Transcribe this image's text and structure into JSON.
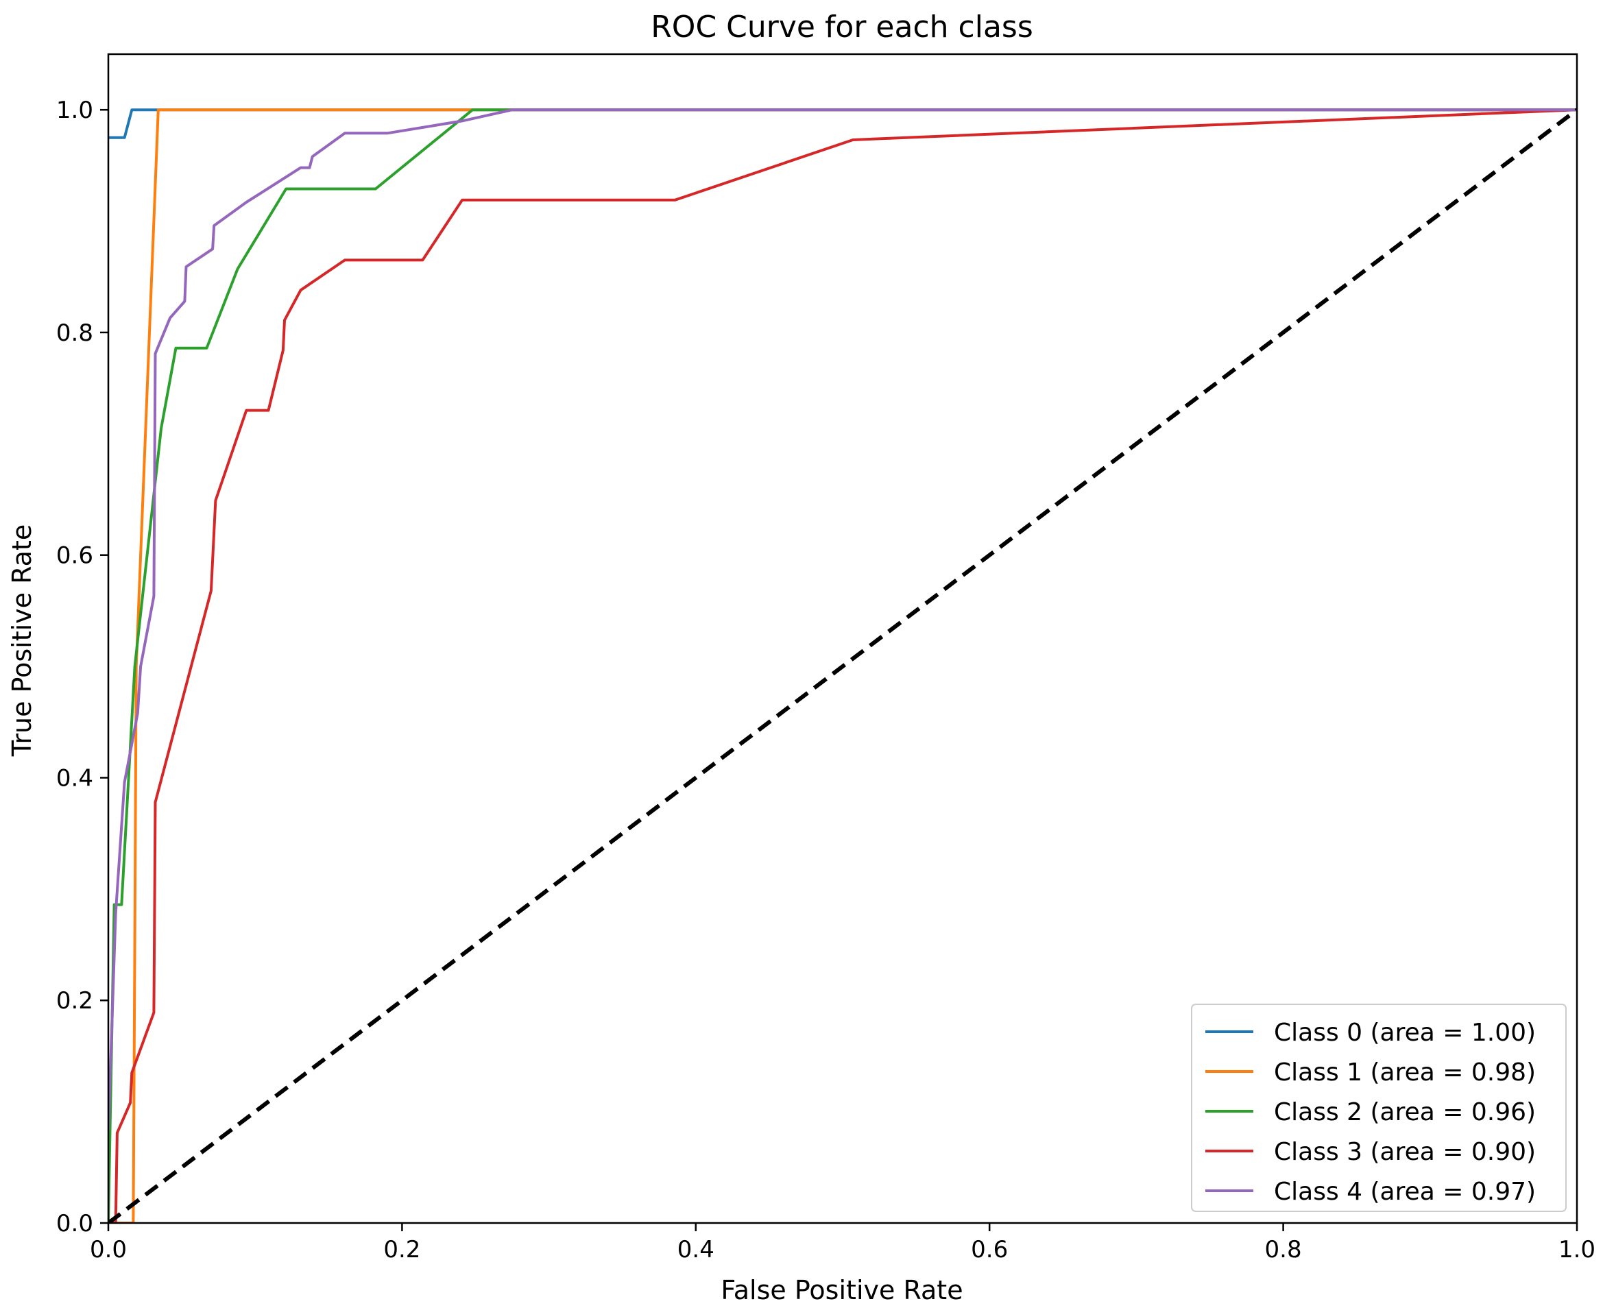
{
  "chart_data": {
    "type": "line",
    "title": "ROC Curve for each class",
    "xlabel": "False Positive Rate",
    "ylabel": "True Positive Rate",
    "xlim": [
      0.0,
      1.0
    ],
    "ylim": [
      0.0,
      1.05
    ],
    "x_ticks": [
      "0.0",
      "0.2",
      "0.4",
      "0.6",
      "0.8",
      "1.0"
    ],
    "x_tick_values": [
      0.0,
      0.2,
      0.4,
      0.6,
      0.8,
      1.0
    ],
    "y_ticks": [
      "0.0",
      "0.2",
      "0.4",
      "0.6",
      "0.8",
      "1.0"
    ],
    "y_tick_values": [
      0.0,
      0.2,
      0.4,
      0.6,
      0.8,
      1.0
    ],
    "grid": false,
    "legend_position": "lower-right",
    "series": [
      {
        "name": "Class 0 (area = 1.00)",
        "color": "#1f77b4",
        "points": [
          [
            0.0,
            0.975
          ],
          [
            0.011,
            0.975
          ],
          [
            0.016,
            1.0
          ],
          [
            0.035,
            1.0
          ],
          [
            1.0,
            1.0
          ]
        ]
      },
      {
        "name": "Class 1 (area = 0.98)",
        "color": "#ff7f0e",
        "points": [
          [
            0.0,
            0.0
          ],
          [
            0.017,
            0.0
          ],
          [
            0.019,
            0.5
          ],
          [
            0.034,
            1.0
          ],
          [
            1.0,
            1.0
          ]
        ]
      },
      {
        "name": "Class 2 (area = 0.96)",
        "color": "#2ca02c",
        "points": [
          [
            0.0,
            0.0
          ],
          [
            0.004,
            0.286
          ],
          [
            0.009,
            0.286
          ],
          [
            0.018,
            0.5
          ],
          [
            0.036,
            0.714
          ],
          [
            0.046,
            0.786
          ],
          [
            0.067,
            0.786
          ],
          [
            0.088,
            0.857
          ],
          [
            0.121,
            0.929
          ],
          [
            0.182,
            0.929
          ],
          [
            0.248,
            1.0
          ],
          [
            1.0,
            1.0
          ]
        ]
      },
      {
        "name": "Class 3 (area = 0.90)",
        "color": "#d62728",
        "points": [
          [
            0.0,
            0.0
          ],
          [
            0.005,
            0.0
          ],
          [
            0.006,
            0.081
          ],
          [
            0.015,
            0.108
          ],
          [
            0.016,
            0.135
          ],
          [
            0.031,
            0.189
          ],
          [
            0.032,
            0.378
          ],
          [
            0.07,
            0.568
          ],
          [
            0.073,
            0.649
          ],
          [
            0.094,
            0.73
          ],
          [
            0.109,
            0.73
          ],
          [
            0.119,
            0.784
          ],
          [
            0.12,
            0.811
          ],
          [
            0.131,
            0.838
          ],
          [
            0.161,
            0.865
          ],
          [
            0.214,
            0.865
          ],
          [
            0.241,
            0.919
          ],
          [
            0.386,
            0.919
          ],
          [
            0.507,
            0.973
          ],
          [
            1.0,
            1.0
          ]
        ]
      },
      {
        "name": "Class 4 (area = 0.97)",
        "color": "#9467bd",
        "points": [
          [
            0.0,
            0.083
          ],
          [
            0.005,
            0.278
          ],
          [
            0.011,
            0.396
          ],
          [
            0.02,
            0.458
          ],
          [
            0.022,
            0.5
          ],
          [
            0.031,
            0.563
          ],
          [
            0.032,
            0.781
          ],
          [
            0.042,
            0.813
          ],
          [
            0.052,
            0.828
          ],
          [
            0.053,
            0.859
          ],
          [
            0.071,
            0.875
          ],
          [
            0.072,
            0.896
          ],
          [
            0.094,
            0.917
          ],
          [
            0.131,
            0.948
          ],
          [
            0.137,
            0.948
          ],
          [
            0.139,
            0.958
          ],
          [
            0.161,
            0.979
          ],
          [
            0.19,
            0.979
          ],
          [
            0.241,
            0.99
          ],
          [
            0.275,
            1.0
          ],
          [
            1.0,
            1.0
          ]
        ]
      }
    ],
    "reference_line": {
      "color": "#000000",
      "points": [
        [
          0.0,
          0.0
        ],
        [
          1.0,
          1.0
        ]
      ]
    }
  }
}
